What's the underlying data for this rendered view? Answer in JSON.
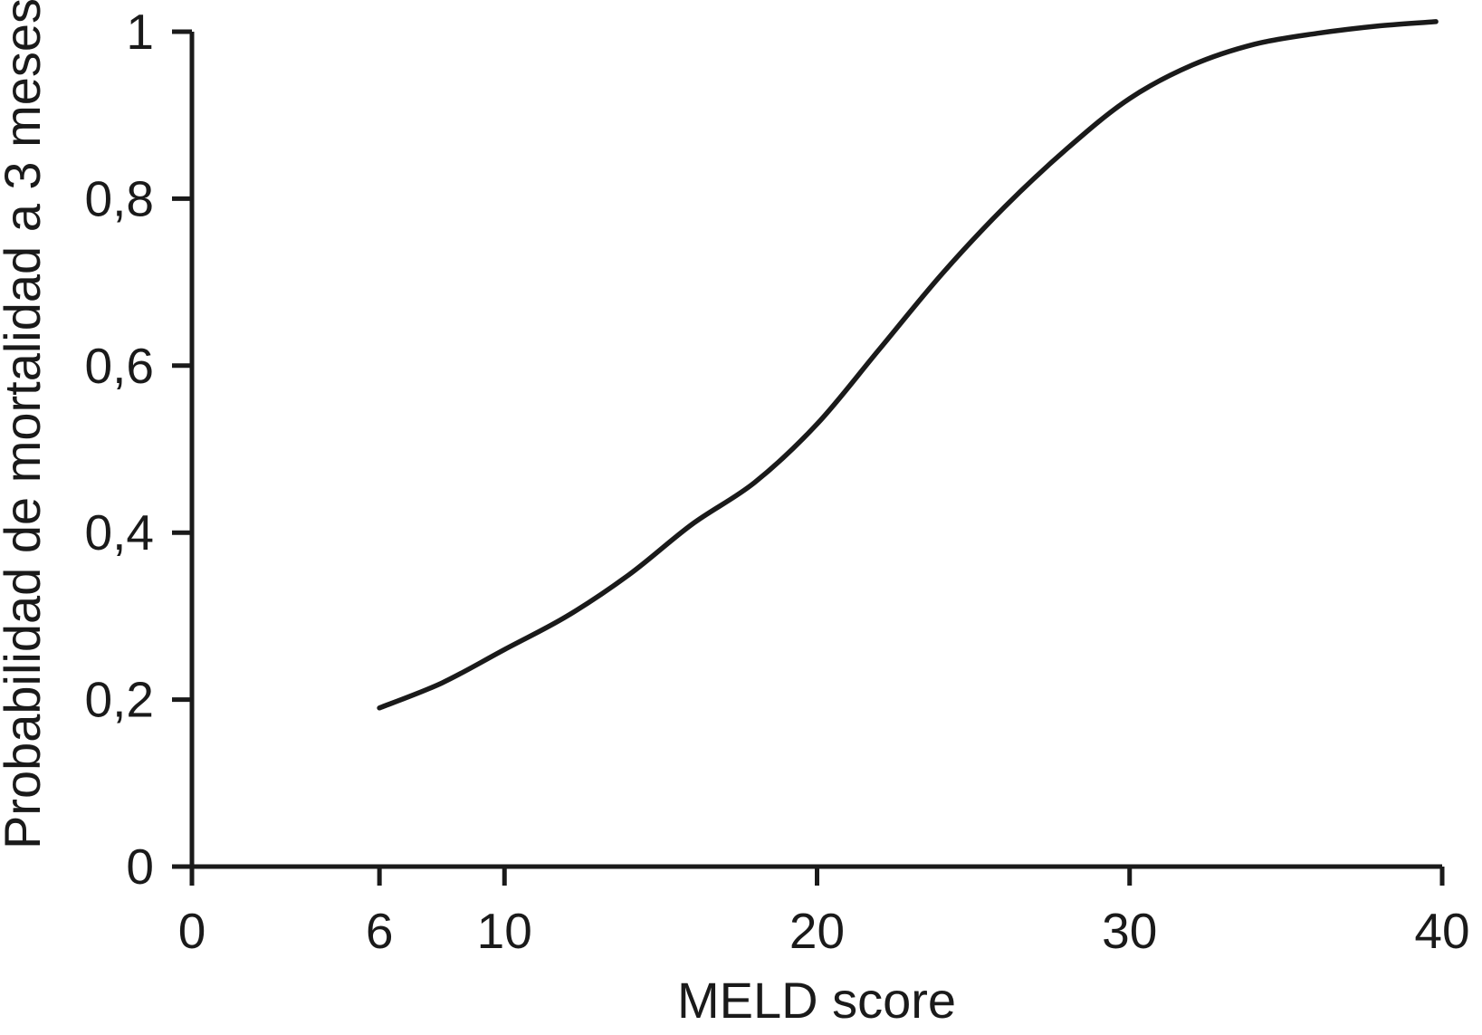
{
  "figure": {
    "background": "#ffffff",
    "stroke_color": "#1a1a1a"
  },
  "chart_data": {
    "type": "line",
    "title": "",
    "xlabel": "MELD score",
    "ylabel": "Probabilidad de mortalidad a 3 meses",
    "xlim": [
      0,
      40
    ],
    "ylim": [
      0,
      1
    ],
    "x_ticks": [
      0,
      6,
      10,
      20,
      30,
      40
    ],
    "x_tick_labels": [
      "0",
      "6",
      "10",
      "20",
      "30",
      "40"
    ],
    "y_ticks": [
      0,
      0.2,
      0.4,
      0.6,
      0.8,
      1
    ],
    "y_tick_labels": [
      "0",
      "0,2",
      "0,4",
      "0,6",
      "0,8",
      "1"
    ],
    "grid": false,
    "legend": null,
    "series": [
      {
        "name": "Probabilidad de mortalidad a 3 meses",
        "x": [
          6,
          8,
          10,
          12,
          14,
          16,
          18,
          20,
          22,
          24,
          26,
          28,
          30,
          32,
          34,
          36,
          38,
          39.8
        ],
        "y": [
          0.19,
          0.22,
          0.26,
          0.3,
          0.35,
          0.41,
          0.46,
          0.53,
          0.62,
          0.71,
          0.79,
          0.86,
          0.92,
          0.96,
          0.985,
          0.998,
          1.007,
          1.012
        ]
      }
    ]
  }
}
